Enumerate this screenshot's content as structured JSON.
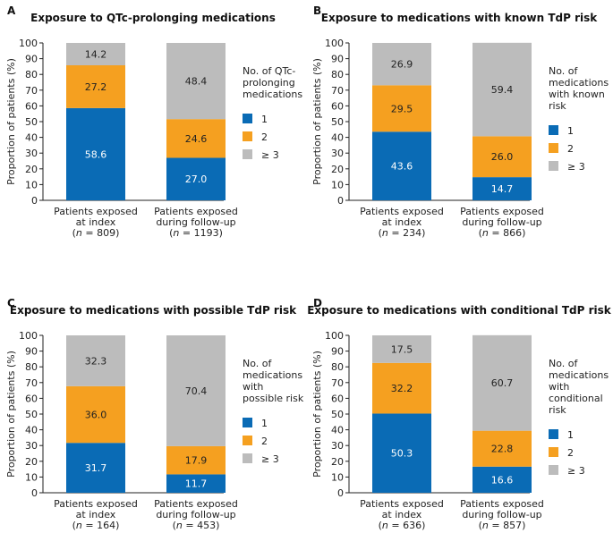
{
  "legend_items": [
    "1",
    "2",
    "≥ 3"
  ],
  "colors": {
    "seg1": "#0a6bb5",
    "seg2": "#f5a020",
    "seg3": "#bcbcbc",
    "axis": "#222222"
  },
  "ylabel": "Proportion of patients (%)",
  "ylim": [
    0,
    100
  ],
  "yticks": [
    "0",
    "10",
    "20",
    "30",
    "40",
    "50",
    "60",
    "70",
    "80",
    "90",
    "100"
  ],
  "panels": [
    {
      "letter": "A",
      "title": "Exposure to QTc-prolonging medications",
      "legend_title": [
        "No. of QTc-",
        "prolonging",
        "medications"
      ],
      "bars": [
        {
          "label": [
            "Patients exposed",
            "at index"
          ],
          "n_prefix": "(",
          "n_var": "n",
          "n_suffix": " = 809)",
          "values": [
            58.6,
            27.2,
            14.2
          ],
          "labels": [
            "58.6",
            "27.2",
            "14.2"
          ]
        },
        {
          "label": [
            "Patients exposed",
            "during follow-up"
          ],
          "n_prefix": "(",
          "n_var": "n",
          "n_suffix": " = 1193)",
          "values": [
            27.0,
            24.6,
            48.4
          ],
          "labels": [
            "27.0",
            "24.6",
            "48.4"
          ]
        }
      ]
    },
    {
      "letter": "B",
      "title": "Exposure to medications with known TdP risk",
      "legend_title": [
        "No. of",
        "medications",
        "with known",
        "risk"
      ],
      "bars": [
        {
          "label": [
            "Patients exposed",
            "at index"
          ],
          "n_prefix": "(",
          "n_var": "n",
          "n_suffix": " = 234)",
          "values": [
            43.6,
            29.5,
            26.9
          ],
          "labels": [
            "43.6",
            "29.5",
            "26.9"
          ]
        },
        {
          "label": [
            "Patients exposed",
            "during follow-up"
          ],
          "n_prefix": "(",
          "n_var": "n",
          "n_suffix": " = 866)",
          "values": [
            14.7,
            26.0,
            59.4
          ],
          "labels": [
            "14.7",
            "26.0",
            "59.4"
          ]
        }
      ]
    },
    {
      "letter": "C",
      "title": "Exposure to medications with possible TdP risk",
      "legend_title": [
        "No. of",
        "medications",
        "with",
        "possible risk"
      ],
      "bars": [
        {
          "label": [
            "Patients exposed",
            "at index"
          ],
          "n_prefix": "(",
          "n_var": "n",
          "n_suffix": " = 164)",
          "values": [
            31.7,
            36.0,
            32.3
          ],
          "labels": [
            "31.7",
            "36.0",
            "32.3"
          ]
        },
        {
          "label": [
            "Patients exposed",
            "during follow-up"
          ],
          "n_prefix": "(",
          "n_var": "n",
          "n_suffix": " = 453)",
          "values": [
            11.7,
            17.9,
            70.4
          ],
          "labels": [
            "11.7",
            "17.9",
            "70.4"
          ]
        }
      ]
    },
    {
      "letter": "D",
      "title": "Exposure to medications with conditional TdP risk",
      "legend_title": [
        "No. of",
        "medications",
        "with",
        "conditional",
        "risk"
      ],
      "bars": [
        {
          "label": [
            "Patients exposed",
            "at index"
          ],
          "n_prefix": "(",
          "n_var": "n",
          "n_suffix": " = 636)",
          "values": [
            50.3,
            32.2,
            17.5
          ],
          "labels": [
            "50.3",
            "32.2",
            "17.5"
          ]
        },
        {
          "label": [
            "Patients exposed",
            "during follow-up"
          ],
          "n_prefix": "(",
          "n_var": "n",
          "n_suffix": " = 857)",
          "values": [
            16.6,
            22.8,
            60.7
          ],
          "labels": [
            "16.6",
            "22.8",
            "60.7"
          ]
        }
      ]
    }
  ],
  "chart_data": [
    {
      "type": "bar",
      "stacked": true,
      "title": "Exposure to QTc-prolonging medications",
      "ylabel": "Proportion of patients (%)",
      "ylim": [
        0,
        100
      ],
      "categories": [
        "Patients exposed at index (n = 809)",
        "Patients exposed during follow-up (n = 1193)"
      ],
      "series": [
        {
          "name": "1",
          "values": [
            58.6,
            27.0
          ]
        },
        {
          "name": "2",
          "values": [
            27.2,
            24.6
          ]
        },
        {
          "name": "≥ 3",
          "values": [
            14.2,
            48.4
          ]
        }
      ]
    },
    {
      "type": "bar",
      "stacked": true,
      "title": "Exposure to medications with known TdP risk",
      "ylabel": "Proportion of patients (%)",
      "ylim": [
        0,
        100
      ],
      "categories": [
        "Patients exposed at index (n = 234)",
        "Patients exposed during follow-up (n = 866)"
      ],
      "series": [
        {
          "name": "1",
          "values": [
            43.6,
            14.7
          ]
        },
        {
          "name": "2",
          "values": [
            29.5,
            26.0
          ]
        },
        {
          "name": "≥ 3",
          "values": [
            26.9,
            59.4
          ]
        }
      ]
    },
    {
      "type": "bar",
      "stacked": true,
      "title": "Exposure to medications with possible TdP risk",
      "ylabel": "Proportion of patients (%)",
      "ylim": [
        0,
        100
      ],
      "categories": [
        "Patients exposed at index (n = 164)",
        "Patients exposed during follow-up (n = 453)"
      ],
      "series": [
        {
          "name": "1",
          "values": [
            31.7,
            11.7
          ]
        },
        {
          "name": "2",
          "values": [
            36.0,
            17.9
          ]
        },
        {
          "name": "≥ 3",
          "values": [
            32.3,
            70.4
          ]
        }
      ]
    },
    {
      "type": "bar",
      "stacked": true,
      "title": "Exposure to medications with conditional TdP risk",
      "ylabel": "Proportion of patients (%)",
      "ylim": [
        0,
        100
      ],
      "categories": [
        "Patients exposed at index (n = 636)",
        "Patients exposed during follow-up (n = 857)"
      ],
      "series": [
        {
          "name": "1",
          "values": [
            50.3,
            16.6
          ]
        },
        {
          "name": "2",
          "values": [
            32.2,
            22.8
          ]
        },
        {
          "name": "≥ 3",
          "values": [
            17.5,
            60.7
          ]
        }
      ]
    }
  ]
}
